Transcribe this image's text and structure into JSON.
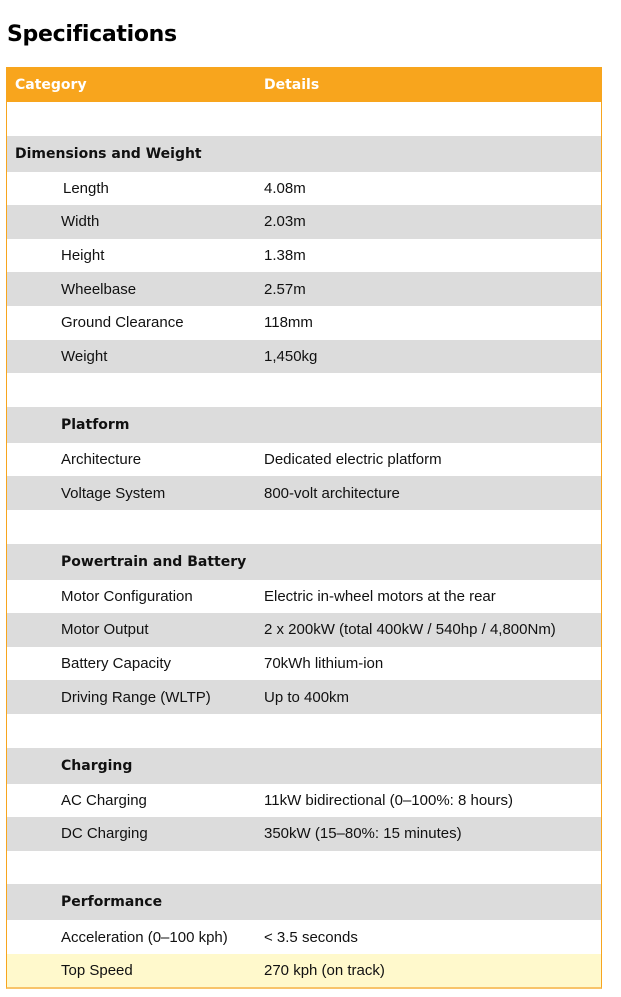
{
  "title": "Specifications",
  "header": {
    "category": "Category",
    "details": "Details"
  },
  "rows": [
    {
      "type": "blank"
    },
    {
      "type": "section",
      "label": "Dimensions and Weight",
      "first": true
    },
    {
      "type": "item",
      "label": "Length",
      "value": "4.08m",
      "bg": "white",
      "extra_indent": true
    },
    {
      "type": "item",
      "label": "Width",
      "value": "2.03m",
      "bg": "gray"
    },
    {
      "type": "item",
      "label": "Height",
      "value": "1.38m",
      "bg": "white"
    },
    {
      "type": "item",
      "label": "Wheelbase",
      "value": "2.57m",
      "bg": "gray"
    },
    {
      "type": "item",
      "label": "Ground Clearance",
      "value": "118mm",
      "bg": "white"
    },
    {
      "type": "item",
      "label": "Weight",
      "value": "1,450kg",
      "bg": "gray"
    },
    {
      "type": "blank"
    },
    {
      "type": "section",
      "label": "Platform"
    },
    {
      "type": "item",
      "label": "Architecture",
      "value": "Dedicated electric platform",
      "bg": "white"
    },
    {
      "type": "item",
      "label": "Voltage System",
      "value": "800-volt architecture",
      "bg": "gray"
    },
    {
      "type": "blank"
    },
    {
      "type": "section",
      "label": "Powertrain and Battery"
    },
    {
      "type": "item",
      "label": "Motor Configuration",
      "value": "Electric in-wheel motors at the rear",
      "bg": "white"
    },
    {
      "type": "item",
      "label": "Motor Output",
      "value": "2 x 200kW (total 400kW / 540hp / 4,800Nm)",
      "bg": "gray"
    },
    {
      "type": "item",
      "label": "Battery Capacity",
      "value": "70kWh lithium-ion",
      "bg": "white"
    },
    {
      "type": "item",
      "label": "Driving Range (WLTP)",
      "value": "Up to 400km",
      "bg": "gray"
    },
    {
      "type": "blank"
    },
    {
      "type": "section",
      "label": "Charging"
    },
    {
      "type": "item",
      "label": "AC Charging",
      "value": "11kW bidirectional (0–100%: 8 hours)",
      "bg": "white"
    },
    {
      "type": "item",
      "label": "DC Charging",
      "value": "350kW (15–80%: 15 minutes)",
      "bg": "gray"
    },
    {
      "type": "blank"
    },
    {
      "type": "section",
      "label": "Performance"
    },
    {
      "type": "item",
      "label": "Acceleration (0–100 kph)",
      "value": "< 3.5 seconds",
      "bg": "white"
    },
    {
      "type": "item",
      "label": "Top Speed",
      "value": "270 kph (on track)",
      "bg": "highlight"
    }
  ],
  "colors": {
    "header": "#f8a51d",
    "stripe": "#dcdcdc",
    "highlight": "#fff9cc"
  }
}
